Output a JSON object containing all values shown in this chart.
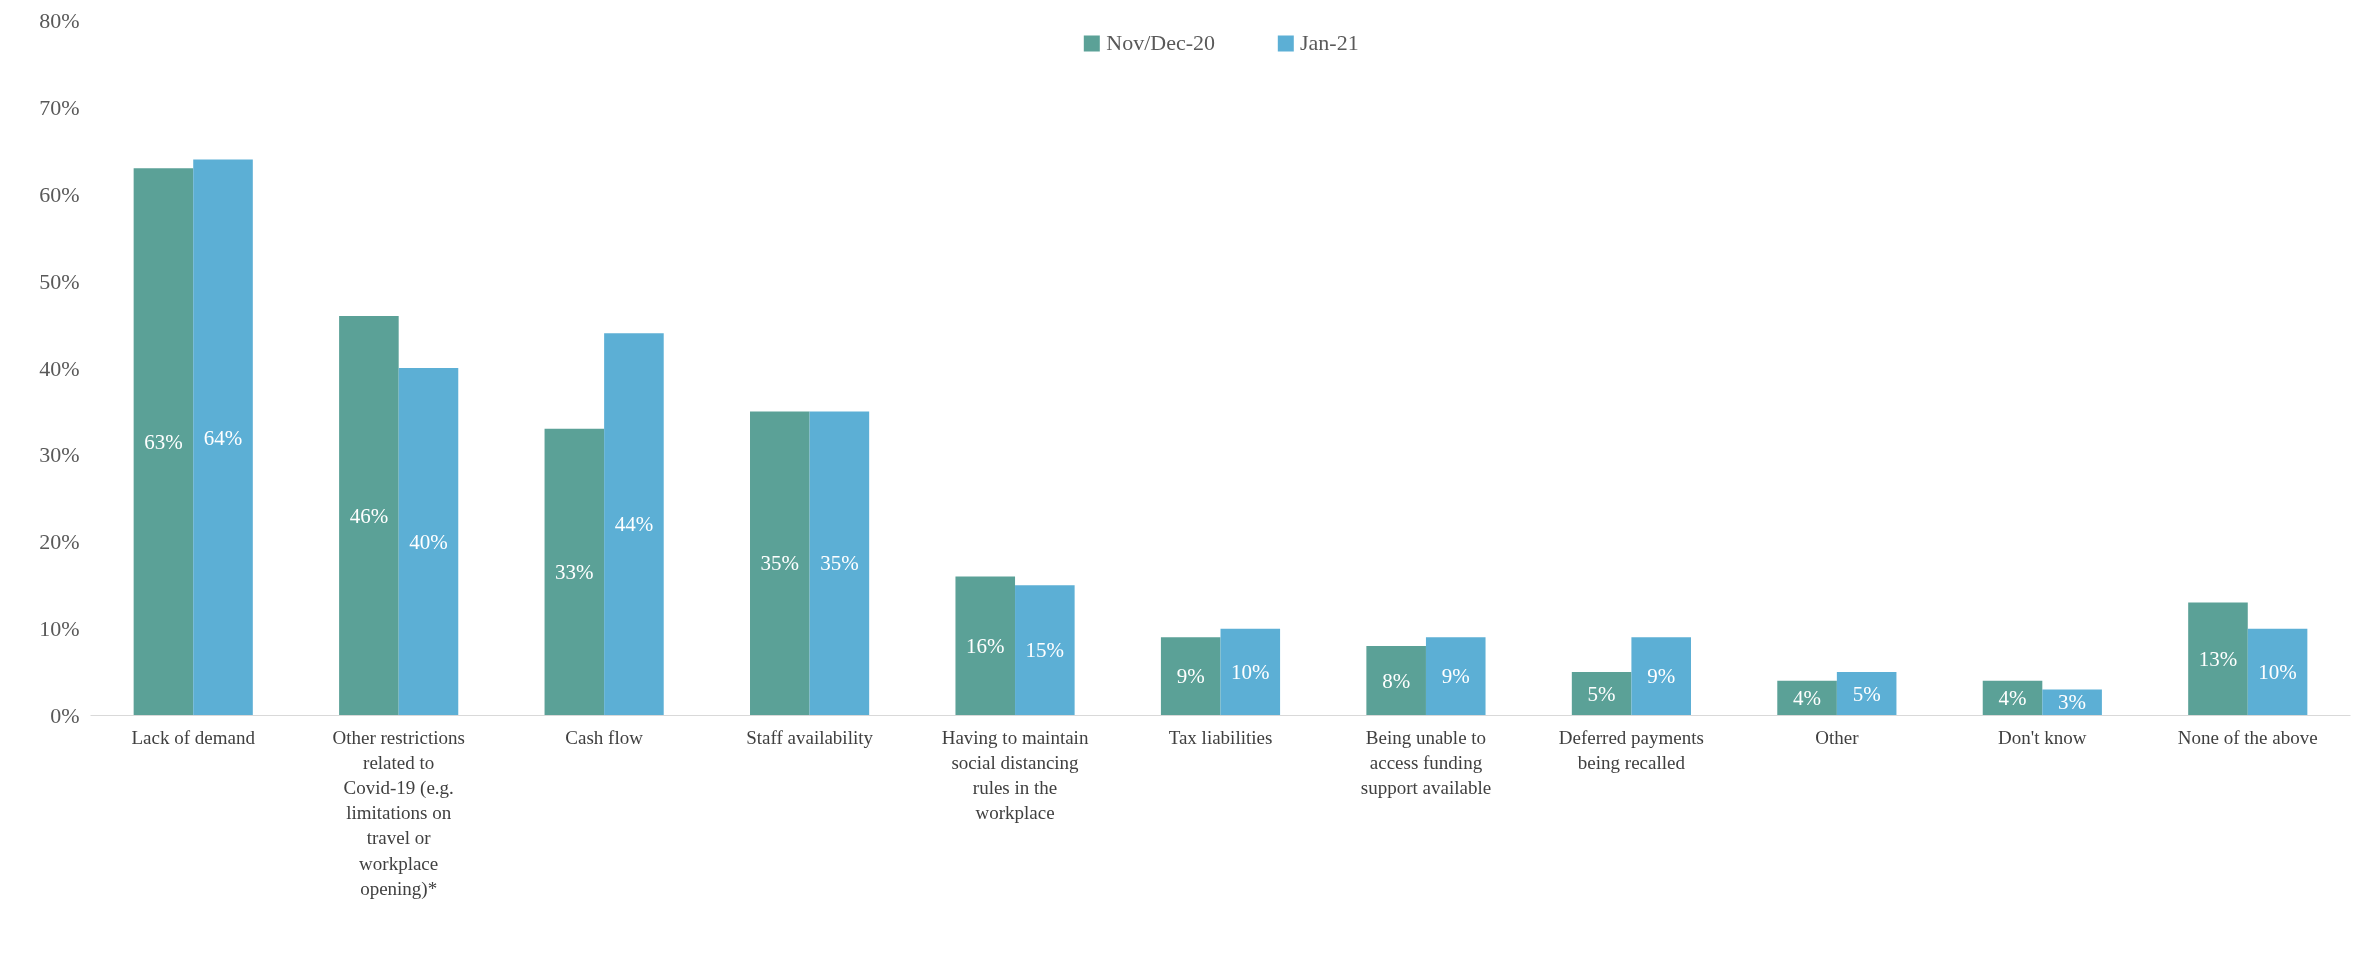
{
  "chart_data": {
    "type": "bar",
    "categories": [
      "Lack of demand",
      "Other restrictions related to Covid-19 (e.g. limitations on travel or workplace opening)*",
      "Cash flow",
      "Staff availability",
      "Having to maintain social distancing rules in the workplace",
      "Tax liabilities",
      "Being unable to access funding support available",
      "Deferred payments being recalled",
      "Other",
      "Don't know",
      "None of the above"
    ],
    "series": [
      {
        "name": "Nov/Dec-20",
        "color": "#5ba197",
        "values": [
          63,
          46,
          33,
          35,
          16,
          9,
          8,
          5,
          4,
          4,
          13
        ],
        "value_labels": [
          "63%",
          "46%",
          "33%",
          "35%",
          "16%",
          "9%",
          "8%",
          "5%",
          "4%",
          "4%",
          "13%"
        ]
      },
      {
        "name": "Jan-21",
        "color": "#5cafd5",
        "values": [
          64,
          40,
          44,
          35,
          15,
          10,
          9,
          9,
          5,
          3,
          10
        ],
        "value_labels": [
          "64%",
          "40%",
          "44%",
          "35%",
          "15%",
          "10%",
          "9%",
          "9%",
          "5%",
          "3%",
          "10%"
        ]
      }
    ],
    "ylim": [
      0,
      80
    ],
    "yticks": [
      {
        "value": 0,
        "label": "0%"
      },
      {
        "value": 10,
        "label": "10%"
      },
      {
        "value": 20,
        "label": "20%"
      },
      {
        "value": 30,
        "label": "30%"
      },
      {
        "value": 40,
        "label": "40%"
      },
      {
        "value": 50,
        "label": "50%"
      },
      {
        "value": 60,
        "label": "60%"
      },
      {
        "value": 70,
        "label": "70%"
      },
      {
        "value": 80,
        "label": "80%"
      }
    ],
    "grid": false,
    "legend": "top"
  }
}
